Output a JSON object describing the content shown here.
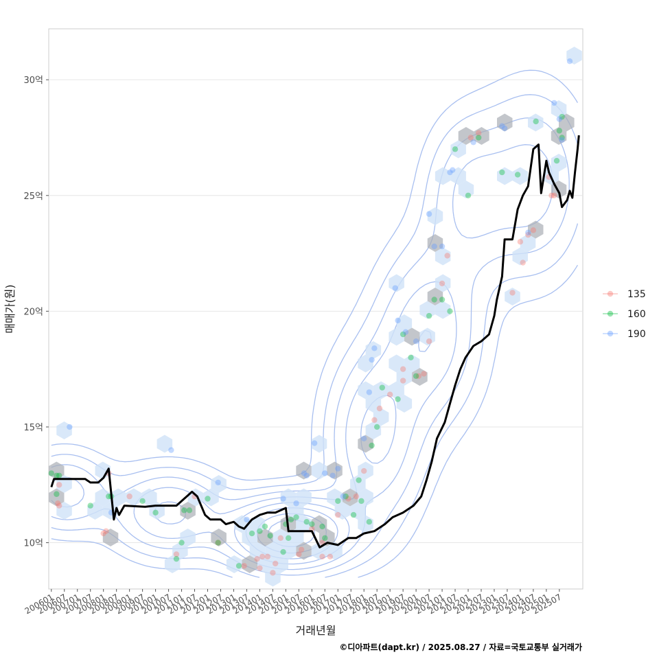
{
  "chart_data": {
    "type": "scatter",
    "xlabel": "거래년월",
    "ylabel": "매매가(원)",
    "caption": "©디아파트(dapt.kr) / 2025.08.27 / 자료=국토교통부 실거래가",
    "x_range": [
      2005.9,
      2026.4
    ],
    "ylim": [
      8.0,
      32.2
    ],
    "grid": true,
    "y_ticks": [
      {
        "value": 10,
        "label": "10억"
      },
      {
        "value": 15,
        "label": "15억"
      },
      {
        "value": 20,
        "label": "20억"
      },
      {
        "value": 25,
        "label": "25억"
      },
      {
        "value": 30,
        "label": "30억"
      }
    ],
    "x_ticks": [
      "200601",
      "200607",
      "200701",
      "200707",
      "200801",
      "200807",
      "200901",
      "200907",
      "201001",
      "201007",
      "201101",
      "201107",
      "201201",
      "201207",
      "201301",
      "201307",
      "201401",
      "201407",
      "201501",
      "201507",
      "201601",
      "201607",
      "201701",
      "201707",
      "201801",
      "201807",
      "201901",
      "201907",
      "202001",
      "202007",
      "202101",
      "202107",
      "202201",
      "202207",
      "202301",
      "202307",
      "202401",
      "202407",
      "202501",
      "202507"
    ],
    "legend": {
      "position": "right",
      "entries": [
        {
          "label": "135",
          "color": "#F8766D"
        },
        {
          "label": "160",
          "color": "#00BA38"
        },
        {
          "label": "190",
          "color": "#619CFF"
        }
      ]
    },
    "colors": {
      "hex": "#a9aeb5",
      "hex_light": "#cfe2f8",
      "contour": "#a8bff0",
      "line": "#000000"
    },
    "series": [
      {
        "name": "135",
        "points": [
          [
            2006.25,
            11.7
          ],
          [
            2006.3,
            12.5
          ],
          [
            2006.3,
            11.6
          ],
          [
            2008.2,
            13.0
          ],
          [
            2008.1,
            10.5
          ],
          [
            2008.0,
            10.4
          ],
          [
            2009.0,
            12.0
          ],
          [
            2010.8,
            9.5
          ],
          [
            2011.5,
            12.0
          ],
          [
            2012.4,
            10.0
          ],
          [
            2013.4,
            9.0
          ],
          [
            2013.9,
            9.3
          ],
          [
            2014.0,
            8.9
          ],
          [
            2014.1,
            9.4
          ],
          [
            2014.3,
            9.4
          ],
          [
            2014.5,
            8.7
          ],
          [
            2014.6,
            9.1
          ],
          [
            2014.8,
            10.2
          ],
          [
            2015.5,
            9.5
          ],
          [
            2015.6,
            9.7
          ],
          [
            2016.0,
            10.6
          ],
          [
            2016.4,
            10.0
          ],
          [
            2016.4,
            9.4
          ],
          [
            2016.7,
            9.4
          ],
          [
            2017.0,
            11.2
          ],
          [
            2017.4,
            11.9
          ],
          [
            2017.7,
            12.0
          ],
          [
            2018.0,
            13.1
          ],
          [
            2018.4,
            15.3
          ],
          [
            2018.6,
            15.8
          ],
          [
            2019.0,
            16.4
          ],
          [
            2019.5,
            17.0
          ],
          [
            2019.5,
            17.5
          ],
          [
            2020.1,
            17.2
          ],
          [
            2020.3,
            17.3
          ],
          [
            2020.5,
            18.7
          ],
          [
            2021.0,
            21.2
          ],
          [
            2021.2,
            22.4
          ],
          [
            2022.1,
            27.5
          ],
          [
            2022.4,
            27.7
          ],
          [
            2023.7,
            20.8
          ],
          [
            2024.0,
            23.0
          ],
          [
            2024.1,
            22.1
          ],
          [
            2024.3,
            23.3
          ],
          [
            2024.5,
            23.5
          ],
          [
            2025.1,
            25.8
          ],
          [
            2025.2,
            25.0
          ],
          [
            2025.3,
            25.0
          ]
        ]
      },
      {
        "name": "160",
        "points": [
          [
            2006.0,
            13.0
          ],
          [
            2006.2,
            12.9
          ],
          [
            2006.2,
            12.1
          ],
          [
            2006.3,
            12.9
          ],
          [
            2007.5,
            11.6
          ],
          [
            2008.2,
            12.0
          ],
          [
            2008.3,
            12.0
          ],
          [
            2009.5,
            11.8
          ],
          [
            2010.0,
            11.3
          ],
          [
            2010.8,
            9.3
          ],
          [
            2011.0,
            10.0
          ],
          [
            2011.1,
            11.4
          ],
          [
            2011.3,
            11.4
          ],
          [
            2012.0,
            11.9
          ],
          [
            2012.4,
            10.0
          ],
          [
            2013.2,
            9.0
          ],
          [
            2013.7,
            10.4
          ],
          [
            2014.0,
            10.5
          ],
          [
            2014.2,
            10.7
          ],
          [
            2014.4,
            10.3
          ],
          [
            2014.9,
            9.6
          ],
          [
            2015.0,
            10.8
          ],
          [
            2015.1,
            10.2
          ],
          [
            2015.2,
            11.0
          ],
          [
            2015.4,
            11.1
          ],
          [
            2015.8,
            10.9
          ],
          [
            2016.0,
            10.8
          ],
          [
            2016.4,
            10.7
          ],
          [
            2016.5,
            10.2
          ],
          [
            2017.0,
            11.8
          ],
          [
            2017.3,
            12.0
          ],
          [
            2017.6,
            11.2
          ],
          [
            2017.8,
            12.7
          ],
          [
            2017.9,
            11.8
          ],
          [
            2018.2,
            10.9
          ],
          [
            2018.3,
            14.2
          ],
          [
            2018.5,
            15.0
          ],
          [
            2018.7,
            16.7
          ],
          [
            2019.3,
            16.2
          ],
          [
            2019.5,
            19.0
          ],
          [
            2019.8,
            18.0
          ],
          [
            2020.0,
            17.2
          ],
          [
            2020.5,
            19.8
          ],
          [
            2020.7,
            20.5
          ],
          [
            2021.0,
            20.5
          ],
          [
            2021.3,
            20.0
          ],
          [
            2021.5,
            27.0
          ],
          [
            2022.0,
            25.0
          ],
          [
            2022.4,
            27.5
          ],
          [
            2023.3,
            26.0
          ],
          [
            2023.9,
            25.9
          ],
          [
            2024.6,
            28.2
          ],
          [
            2025.4,
            26.5
          ],
          [
            2025.5,
            27.8
          ],
          [
            2025.6,
            28.4
          ],
          [
            2025.6,
            27.5
          ]
        ]
      },
      {
        "name": "190",
        "points": [
          [
            2006.7,
            15.0
          ],
          [
            2008.3,
            11.3
          ],
          [
            2010.6,
            14.0
          ],
          [
            2012.4,
            12.6
          ],
          [
            2013.5,
            11.0
          ],
          [
            2014.9,
            11.9
          ],
          [
            2015.4,
            11.7
          ],
          [
            2015.7,
            13.0
          ],
          [
            2015.8,
            12.9
          ],
          [
            2016.1,
            14.3
          ],
          [
            2016.5,
            13.0
          ],
          [
            2016.8,
            12.9
          ],
          [
            2017.0,
            13.2
          ],
          [
            2017.2,
            12.0
          ],
          [
            2018.0,
            14.5
          ],
          [
            2018.2,
            16.5
          ],
          [
            2018.3,
            17.9
          ],
          [
            2018.4,
            18.4
          ],
          [
            2019.2,
            21.0
          ],
          [
            2019.3,
            19.6
          ],
          [
            2019.6,
            19.1
          ],
          [
            2020.0,
            18.7
          ],
          [
            2020.5,
            24.2
          ],
          [
            2020.7,
            22.8
          ],
          [
            2021.0,
            22.8
          ],
          [
            2021.3,
            26.0
          ],
          [
            2021.4,
            26.1
          ],
          [
            2022.2,
            27.3
          ],
          [
            2023.3,
            28.0
          ],
          [
            2023.4,
            27.9
          ],
          [
            2024.3,
            23.4
          ],
          [
            2025.3,
            29.0
          ],
          [
            2025.5,
            28.3
          ],
          [
            2025.6,
            27.4
          ],
          [
            2025.9,
            30.8
          ]
        ]
      }
    ],
    "median_line": [
      [
        2006.0,
        12.4
      ],
      [
        2006.1,
        12.75
      ],
      [
        2006.3,
        12.75
      ],
      [
        2007.3,
        12.75
      ],
      [
        2007.5,
        12.6
      ],
      [
        2007.8,
        12.6
      ],
      [
        2008.0,
        12.8
      ],
      [
        2008.2,
        13.2
      ],
      [
        2008.4,
        11.0
      ],
      [
        2008.5,
        11.5
      ],
      [
        2008.6,
        11.2
      ],
      [
        2008.8,
        11.6
      ],
      [
        2009.6,
        11.55
      ],
      [
        2010.0,
        11.6
      ],
      [
        2010.8,
        11.6
      ],
      [
        2011.2,
        12.0
      ],
      [
        2011.4,
        12.2
      ],
      [
        2011.6,
        12.0
      ],
      [
        2011.9,
        11.2
      ],
      [
        2012.1,
        11.0
      ],
      [
        2012.5,
        11.0
      ],
      [
        2012.7,
        10.8
      ],
      [
        2013.0,
        10.9
      ],
      [
        2013.2,
        10.7
      ],
      [
        2013.4,
        10.6
      ],
      [
        2013.7,
        11.0
      ],
      [
        2014.0,
        11.2
      ],
      [
        2014.3,
        11.3
      ],
      [
        2014.6,
        11.3
      ],
      [
        2015.0,
        11.5
      ],
      [
        2015.1,
        10.5
      ],
      [
        2016.0,
        10.5
      ],
      [
        2016.3,
        9.8
      ],
      [
        2016.6,
        10.0
      ],
      [
        2017.0,
        9.9
      ],
      [
        2017.4,
        10.2
      ],
      [
        2017.7,
        10.2
      ],
      [
        2018.0,
        10.4
      ],
      [
        2018.4,
        10.5
      ],
      [
        2018.8,
        10.8
      ],
      [
        2019.1,
        11.1
      ],
      [
        2019.5,
        11.3
      ],
      [
        2019.9,
        11.6
      ],
      [
        2020.2,
        12.0
      ],
      [
        2020.4,
        12.7
      ],
      [
        2020.6,
        13.5
      ],
      [
        2020.8,
        14.5
      ],
      [
        2021.1,
        15.2
      ],
      [
        2021.3,
        16.0
      ],
      [
        2021.5,
        16.8
      ],
      [
        2021.7,
        17.5
      ],
      [
        2021.9,
        18.0
      ],
      [
        2022.2,
        18.5
      ],
      [
        2022.5,
        18.7
      ],
      [
        2022.8,
        19.0
      ],
      [
        2023.0,
        19.8
      ],
      [
        2023.1,
        20.5
      ],
      [
        2023.3,
        21.5
      ],
      [
        2023.4,
        23.1
      ],
      [
        2023.7,
        23.1
      ],
      [
        2023.9,
        24.4
      ],
      [
        2024.1,
        25.0
      ],
      [
        2024.3,
        25.4
      ],
      [
        2024.5,
        27.0
      ],
      [
        2024.7,
        27.2
      ],
      [
        2024.8,
        25.1
      ],
      [
        2025.0,
        26.5
      ],
      [
        2025.1,
        26.0
      ],
      [
        2025.3,
        25.5
      ],
      [
        2025.5,
        25.1
      ],
      [
        2025.6,
        24.5
      ],
      [
        2025.8,
        24.8
      ],
      [
        2025.9,
        25.2
      ],
      [
        2026.0,
        24.9
      ],
      [
        2026.1,
        26.0
      ],
      [
        2026.2,
        27.0
      ],
      [
        2026.25,
        27.6
      ]
    ]
  }
}
